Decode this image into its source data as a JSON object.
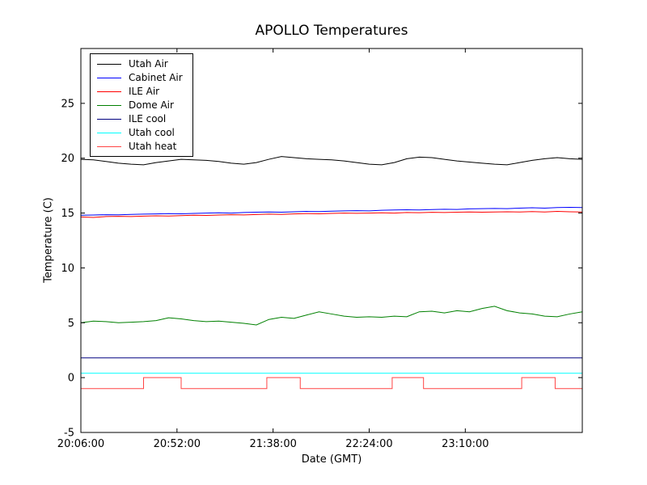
{
  "figure": {
    "title": "APOLLO Temperatures",
    "xlabel": "Date (GMT)",
    "ylabel": "Temperature (C)",
    "background_color": "#ffffff",
    "frame_color": "#000000"
  },
  "chart_data": {
    "type": "line",
    "title": "APOLLO Temperatures",
    "xlabel": "Date (GMT)",
    "ylabel": "Temperature (C)",
    "grid": false,
    "legend_position": "upper-left",
    "x_unit": "minutes since 20:06:00 GMT",
    "xlim": [
      0,
      240
    ],
    "ylim": [
      -5,
      30
    ],
    "yticks": [
      -5,
      0,
      5,
      10,
      15,
      20,
      25
    ],
    "xticks": [
      {
        "t": 0,
        "label": "20:06:00"
      },
      {
        "t": 46,
        "label": "20:52:00"
      },
      {
        "t": 92,
        "label": "21:38:00"
      },
      {
        "t": 138,
        "label": "22:24:00"
      },
      {
        "t": 184,
        "label": "23:10:00"
      }
    ],
    "series": [
      {
        "name": "Utah Air",
        "color": "#000000",
        "x": [
          0,
          6,
          12,
          18,
          24,
          30,
          36,
          42,
          48,
          54,
          60,
          66,
          72,
          78,
          84,
          90,
          96,
          102,
          108,
          114,
          120,
          126,
          132,
          138,
          144,
          150,
          156,
          162,
          168,
          174,
          180,
          186,
          192,
          198,
          204,
          210,
          216,
          222,
          228,
          234,
          240
        ],
        "values": [
          19.9,
          19.85,
          19.7,
          19.55,
          19.45,
          19.4,
          19.6,
          19.75,
          19.9,
          19.85,
          19.8,
          19.7,
          19.55,
          19.45,
          19.6,
          19.9,
          20.15,
          20.05,
          19.95,
          19.9,
          19.85,
          19.75,
          19.6,
          19.45,
          19.4,
          19.6,
          19.95,
          20.1,
          20.05,
          19.9,
          19.75,
          19.65,
          19.55,
          19.45,
          19.4,
          19.6,
          19.8,
          19.95,
          20.05,
          19.95,
          19.9
        ]
      },
      {
        "name": "Cabinet Air",
        "color": "#0000ff",
        "x": [
          0,
          6,
          12,
          18,
          24,
          30,
          36,
          42,
          48,
          54,
          60,
          66,
          72,
          78,
          84,
          90,
          96,
          102,
          108,
          114,
          120,
          126,
          132,
          138,
          144,
          150,
          156,
          162,
          168,
          174,
          180,
          186,
          192,
          198,
          204,
          210,
          216,
          222,
          228,
          234,
          240
        ],
        "values": [
          14.8,
          14.82,
          14.85,
          14.84,
          14.88,
          14.9,
          14.92,
          14.95,
          14.93,
          14.97,
          15.0,
          15.02,
          15.0,
          15.05,
          15.08,
          15.1,
          15.08,
          15.12,
          15.15,
          15.13,
          15.17,
          15.2,
          15.22,
          15.2,
          15.25,
          15.28,
          15.3,
          15.28,
          15.32,
          15.35,
          15.33,
          15.38,
          15.4,
          15.42,
          15.4,
          15.45,
          15.48,
          15.45,
          15.5,
          15.52,
          15.5
        ]
      },
      {
        "name": "ILE Air",
        "color": "#ff0000",
        "x": [
          0,
          6,
          12,
          18,
          24,
          30,
          36,
          42,
          48,
          54,
          60,
          66,
          72,
          78,
          84,
          90,
          96,
          102,
          108,
          114,
          120,
          126,
          132,
          138,
          144,
          150,
          156,
          162,
          168,
          174,
          180,
          186,
          192,
          198,
          204,
          210,
          216,
          222,
          228,
          234,
          240
        ],
        "values": [
          14.65,
          14.6,
          14.68,
          14.7,
          14.68,
          14.72,
          14.75,
          14.73,
          14.77,
          14.8,
          14.78,
          14.82,
          14.85,
          14.83,
          14.87,
          14.9,
          14.88,
          14.92,
          14.95,
          14.93,
          14.97,
          15.0,
          14.98,
          15.0,
          15.02,
          15.0,
          15.05,
          15.03,
          15.07,
          15.05,
          15.08,
          15.1,
          15.08,
          15.1,
          15.12,
          15.1,
          15.13,
          15.1,
          15.15,
          15.12,
          15.1
        ]
      },
      {
        "name": "Dome Air",
        "color": "#008000",
        "x": [
          0,
          6,
          12,
          18,
          24,
          30,
          36,
          42,
          48,
          54,
          60,
          66,
          72,
          78,
          84,
          90,
          96,
          102,
          108,
          114,
          120,
          126,
          132,
          138,
          144,
          150,
          156,
          162,
          168,
          174,
          180,
          186,
          192,
          198,
          204,
          210,
          216,
          222,
          228,
          234,
          240
        ],
        "values": [
          5.0,
          5.15,
          5.1,
          5.0,
          5.05,
          5.1,
          5.2,
          5.45,
          5.35,
          5.2,
          5.1,
          5.15,
          5.05,
          4.95,
          4.8,
          5.3,
          5.5,
          5.4,
          5.7,
          6.0,
          5.8,
          5.6,
          5.5,
          5.55,
          5.5,
          5.6,
          5.55,
          6.0,
          6.05,
          5.9,
          6.1,
          6.0,
          6.3,
          6.5,
          6.1,
          5.9,
          5.8,
          5.6,
          5.55,
          5.8,
          6.0
        ]
      },
      {
        "name": "ILE cool",
        "color": "#000080",
        "x": [
          0,
          240
        ],
        "values": [
          1.8,
          1.8
        ]
      },
      {
        "name": "Utah cool",
        "color": "#00ffff",
        "x": [
          0,
          240
        ],
        "values": [
          0.4,
          0.4
        ]
      },
      {
        "name": "Utah heat",
        "color": "#ff4444",
        "x": [
          0,
          30,
          30,
          48,
          48,
          89,
          89,
          105,
          105,
          149,
          149,
          164,
          164,
          211,
          211,
          227,
          227,
          240
        ],
        "values": [
          -1,
          -1,
          0,
          0,
          -1,
          -1,
          0,
          0,
          -1,
          -1,
          0,
          0,
          -1,
          -1,
          0,
          0,
          -1,
          -1
        ]
      }
    ]
  }
}
